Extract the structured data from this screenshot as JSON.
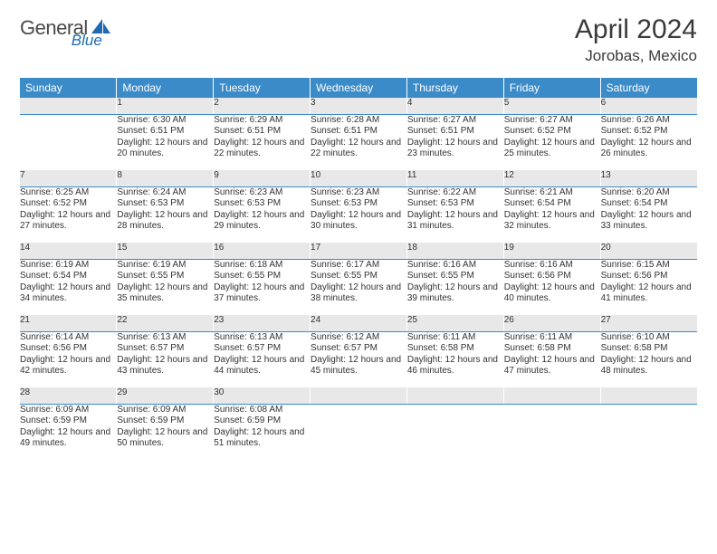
{
  "brand": {
    "name": "General",
    "accent_word": "Blue"
  },
  "colors": {
    "header_bg": "#3b8bc9",
    "header_text": "#ffffff",
    "daynum_bg": "#e8e8e8",
    "daynum_border": "#3b8bc9",
    "body_text": "#333333",
    "title_text": "#3a3a3a"
  },
  "title": "April 2024",
  "location": "Jorobas, Mexico",
  "weekdays": [
    "Sunday",
    "Monday",
    "Tuesday",
    "Wednesday",
    "Thursday",
    "Friday",
    "Saturday"
  ],
  "weeks": [
    {
      "nums": [
        "",
        "1",
        "2",
        "3",
        "4",
        "5",
        "6"
      ],
      "cells": [
        null,
        {
          "sunrise": "6:30 AM",
          "sunset": "6:51 PM",
          "daylight": "12 hours and 20 minutes."
        },
        {
          "sunrise": "6:29 AM",
          "sunset": "6:51 PM",
          "daylight": "12 hours and 22 minutes."
        },
        {
          "sunrise": "6:28 AM",
          "sunset": "6:51 PM",
          "daylight": "12 hours and 22 minutes."
        },
        {
          "sunrise": "6:27 AM",
          "sunset": "6:51 PM",
          "daylight": "12 hours and 23 minutes."
        },
        {
          "sunrise": "6:27 AM",
          "sunset": "6:52 PM",
          "daylight": "12 hours and 25 minutes."
        },
        {
          "sunrise": "6:26 AM",
          "sunset": "6:52 PM",
          "daylight": "12 hours and 26 minutes."
        }
      ]
    },
    {
      "nums": [
        "7",
        "8",
        "9",
        "10",
        "11",
        "12",
        "13"
      ],
      "cells": [
        {
          "sunrise": "6:25 AM",
          "sunset": "6:52 PM",
          "daylight": "12 hours and 27 minutes."
        },
        {
          "sunrise": "6:24 AM",
          "sunset": "6:53 PM",
          "daylight": "12 hours and 28 minutes."
        },
        {
          "sunrise": "6:23 AM",
          "sunset": "6:53 PM",
          "daylight": "12 hours and 29 minutes."
        },
        {
          "sunrise": "6:23 AM",
          "sunset": "6:53 PM",
          "daylight": "12 hours and 30 minutes."
        },
        {
          "sunrise": "6:22 AM",
          "sunset": "6:53 PM",
          "daylight": "12 hours and 31 minutes."
        },
        {
          "sunrise": "6:21 AM",
          "sunset": "6:54 PM",
          "daylight": "12 hours and 32 minutes."
        },
        {
          "sunrise": "6:20 AM",
          "sunset": "6:54 PM",
          "daylight": "12 hours and 33 minutes."
        }
      ]
    },
    {
      "nums": [
        "14",
        "15",
        "16",
        "17",
        "18",
        "19",
        "20"
      ],
      "cells": [
        {
          "sunrise": "6:19 AM",
          "sunset": "6:54 PM",
          "daylight": "12 hours and 34 minutes."
        },
        {
          "sunrise": "6:19 AM",
          "sunset": "6:55 PM",
          "daylight": "12 hours and 35 minutes."
        },
        {
          "sunrise": "6:18 AM",
          "sunset": "6:55 PM",
          "daylight": "12 hours and 37 minutes."
        },
        {
          "sunrise": "6:17 AM",
          "sunset": "6:55 PM",
          "daylight": "12 hours and 38 minutes."
        },
        {
          "sunrise": "6:16 AM",
          "sunset": "6:55 PM",
          "daylight": "12 hours and 39 minutes."
        },
        {
          "sunrise": "6:16 AM",
          "sunset": "6:56 PM",
          "daylight": "12 hours and 40 minutes."
        },
        {
          "sunrise": "6:15 AM",
          "sunset": "6:56 PM",
          "daylight": "12 hours and 41 minutes."
        }
      ]
    },
    {
      "nums": [
        "21",
        "22",
        "23",
        "24",
        "25",
        "26",
        "27"
      ],
      "cells": [
        {
          "sunrise": "6:14 AM",
          "sunset": "6:56 PM",
          "daylight": "12 hours and 42 minutes."
        },
        {
          "sunrise": "6:13 AM",
          "sunset": "6:57 PM",
          "daylight": "12 hours and 43 minutes."
        },
        {
          "sunrise": "6:13 AM",
          "sunset": "6:57 PM",
          "daylight": "12 hours and 44 minutes."
        },
        {
          "sunrise": "6:12 AM",
          "sunset": "6:57 PM",
          "daylight": "12 hours and 45 minutes."
        },
        {
          "sunrise": "6:11 AM",
          "sunset": "6:58 PM",
          "daylight": "12 hours and 46 minutes."
        },
        {
          "sunrise": "6:11 AM",
          "sunset": "6:58 PM",
          "daylight": "12 hours and 47 minutes."
        },
        {
          "sunrise": "6:10 AM",
          "sunset": "6:58 PM",
          "daylight": "12 hours and 48 minutes."
        }
      ]
    },
    {
      "nums": [
        "28",
        "29",
        "30",
        "",
        "",
        "",
        ""
      ],
      "cells": [
        {
          "sunrise": "6:09 AM",
          "sunset": "6:59 PM",
          "daylight": "12 hours and 49 minutes."
        },
        {
          "sunrise": "6:09 AM",
          "sunset": "6:59 PM",
          "daylight": "12 hours and 50 minutes."
        },
        {
          "sunrise": "6:08 AM",
          "sunset": "6:59 PM",
          "daylight": "12 hours and 51 minutes."
        },
        null,
        null,
        null,
        null
      ]
    }
  ],
  "labels": {
    "sunrise": "Sunrise:",
    "sunset": "Sunset:",
    "daylight": "Daylight:"
  }
}
